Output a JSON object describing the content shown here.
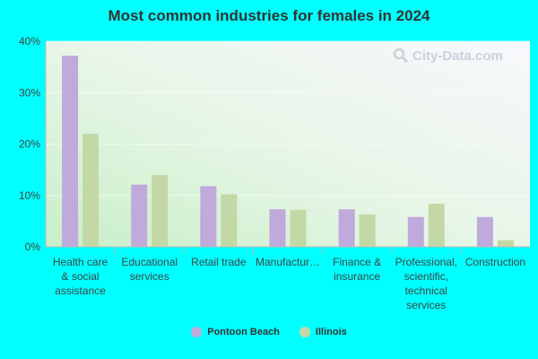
{
  "chart_data": {
    "type": "bar",
    "title": "Most common industries for females in 2024",
    "xlabel": "",
    "ylabel": "",
    "ylim": [
      0,
      40
    ],
    "yticks": [
      "0%",
      "10%",
      "20%",
      "30%",
      "40%"
    ],
    "ytick_values": [
      0,
      10,
      20,
      30,
      40
    ],
    "grid": true,
    "legend_position": "bottom-center",
    "categories": [
      [
        "Health care",
        "& social",
        "assistance"
      ],
      [
        "Educational",
        "services"
      ],
      [
        "Retail trade"
      ],
      [
        "Manufactur…"
      ],
      [
        "Finance &",
        "insurance"
      ],
      [
        "Professional,",
        "scientific,",
        "technical",
        "services"
      ],
      [
        "Construction"
      ]
    ],
    "series": [
      {
        "name": "Pontoon Beach",
        "color": "#c0a9db",
        "values": [
          37.2,
          12.1,
          11.8,
          7.3,
          7.3,
          5.8,
          5.8
        ]
      },
      {
        "name": "Illinois",
        "color": "#c3d8a6",
        "values": [
          22.0,
          14.0,
          10.2,
          7.2,
          6.3,
          8.4,
          1.3
        ]
      }
    ]
  },
  "watermark": {
    "text": "City-Data.com",
    "icon": "search-icon"
  }
}
